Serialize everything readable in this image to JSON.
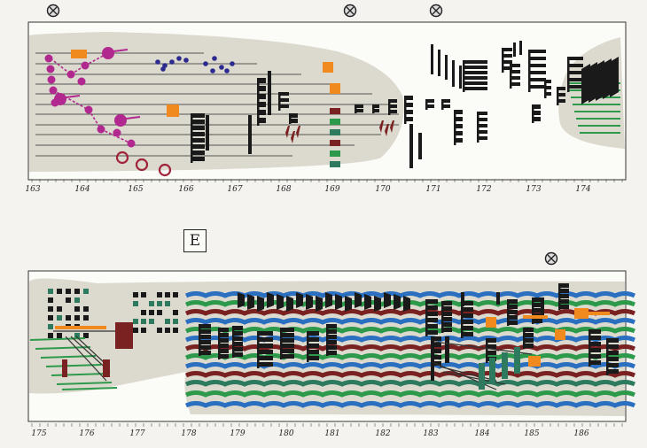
{
  "section_label": "E",
  "system1": {
    "measures": [
      "163",
      "164",
      "165",
      "166",
      "167",
      "168",
      "169",
      "170",
      "171",
      "172",
      "173",
      "174"
    ]
  },
  "system2": {
    "measures": [
      "175",
      "176",
      "177",
      "178",
      "179",
      "180",
      "181",
      "182",
      "183",
      "184",
      "185",
      "186"
    ]
  },
  "colors": {
    "paper": "#f4f3ef",
    "field": "#dcd9ce",
    "magenta": "#b1288f",
    "navy": "#2a2a8f",
    "orange": "#f08a1e",
    "green": "#2c9a4a",
    "teal": "#2e7a5e",
    "blue": "#2a6fc0",
    "maroon": "#7a2222",
    "ink": "#1a1a1a"
  }
}
